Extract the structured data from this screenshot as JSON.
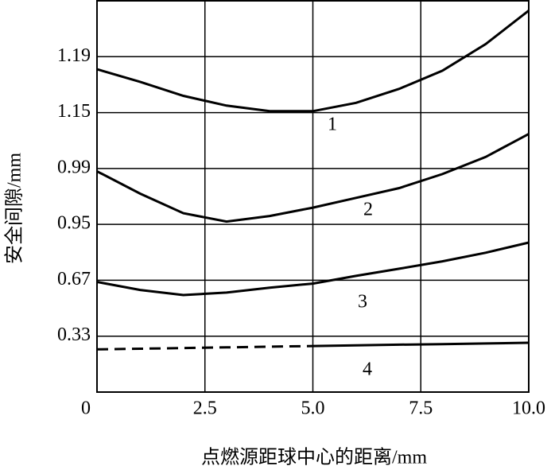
{
  "chart_data": {
    "type": "line",
    "x_label": "点燃源距球中心的距离/mm",
    "y_label": "安全间隙/mm",
    "y_scale": "tick-spaced",
    "x": [
      0,
      1,
      2,
      3,
      4,
      5,
      6,
      7,
      8,
      9,
      10
    ],
    "series": [
      {
        "name": "1",
        "color": "#000000",
        "values": [
          1.181,
          1.172,
          1.162,
          1.155,
          1.151,
          1.151,
          1.157,
          1.167,
          1.18,
          1.199,
          1.223
        ]
      },
      {
        "name": "2",
        "color": "#000000",
        "values": [
          0.988,
          0.972,
          0.958,
          0.952,
          0.956,
          0.962,
          0.969,
          0.976,
          0.986,
          1.023,
          1.089
        ]
      },
      {
        "name": "3",
        "color": "#000000",
        "values": [
          0.66,
          0.611,
          0.58,
          0.595,
          0.625,
          0.65,
          0.692,
          0.728,
          0.765,
          0.808,
          0.859
        ]
      },
      {
        "name": "4",
        "color": "#000000",
        "dashed_until": 5,
        "values": [
          0.252,
          0.256,
          0.26,
          0.264,
          0.268,
          0.272,
          0.276,
          0.28,
          0.283,
          0.287,
          0.291
        ]
      }
    ],
    "xlim": [
      0,
      10
    ],
    "xticks": [
      0,
      2.5,
      {
        "value": 5,
        "label": "5.0"
      },
      7.5,
      {
        "value": 10,
        "label": "10.0"
      }
    ],
    "ylim": [
      0,
      1.23
    ],
    "yticks": [
      0.33,
      0.67,
      0.95,
      0.99,
      1.15,
      1.19
    ],
    "grid": true
  }
}
